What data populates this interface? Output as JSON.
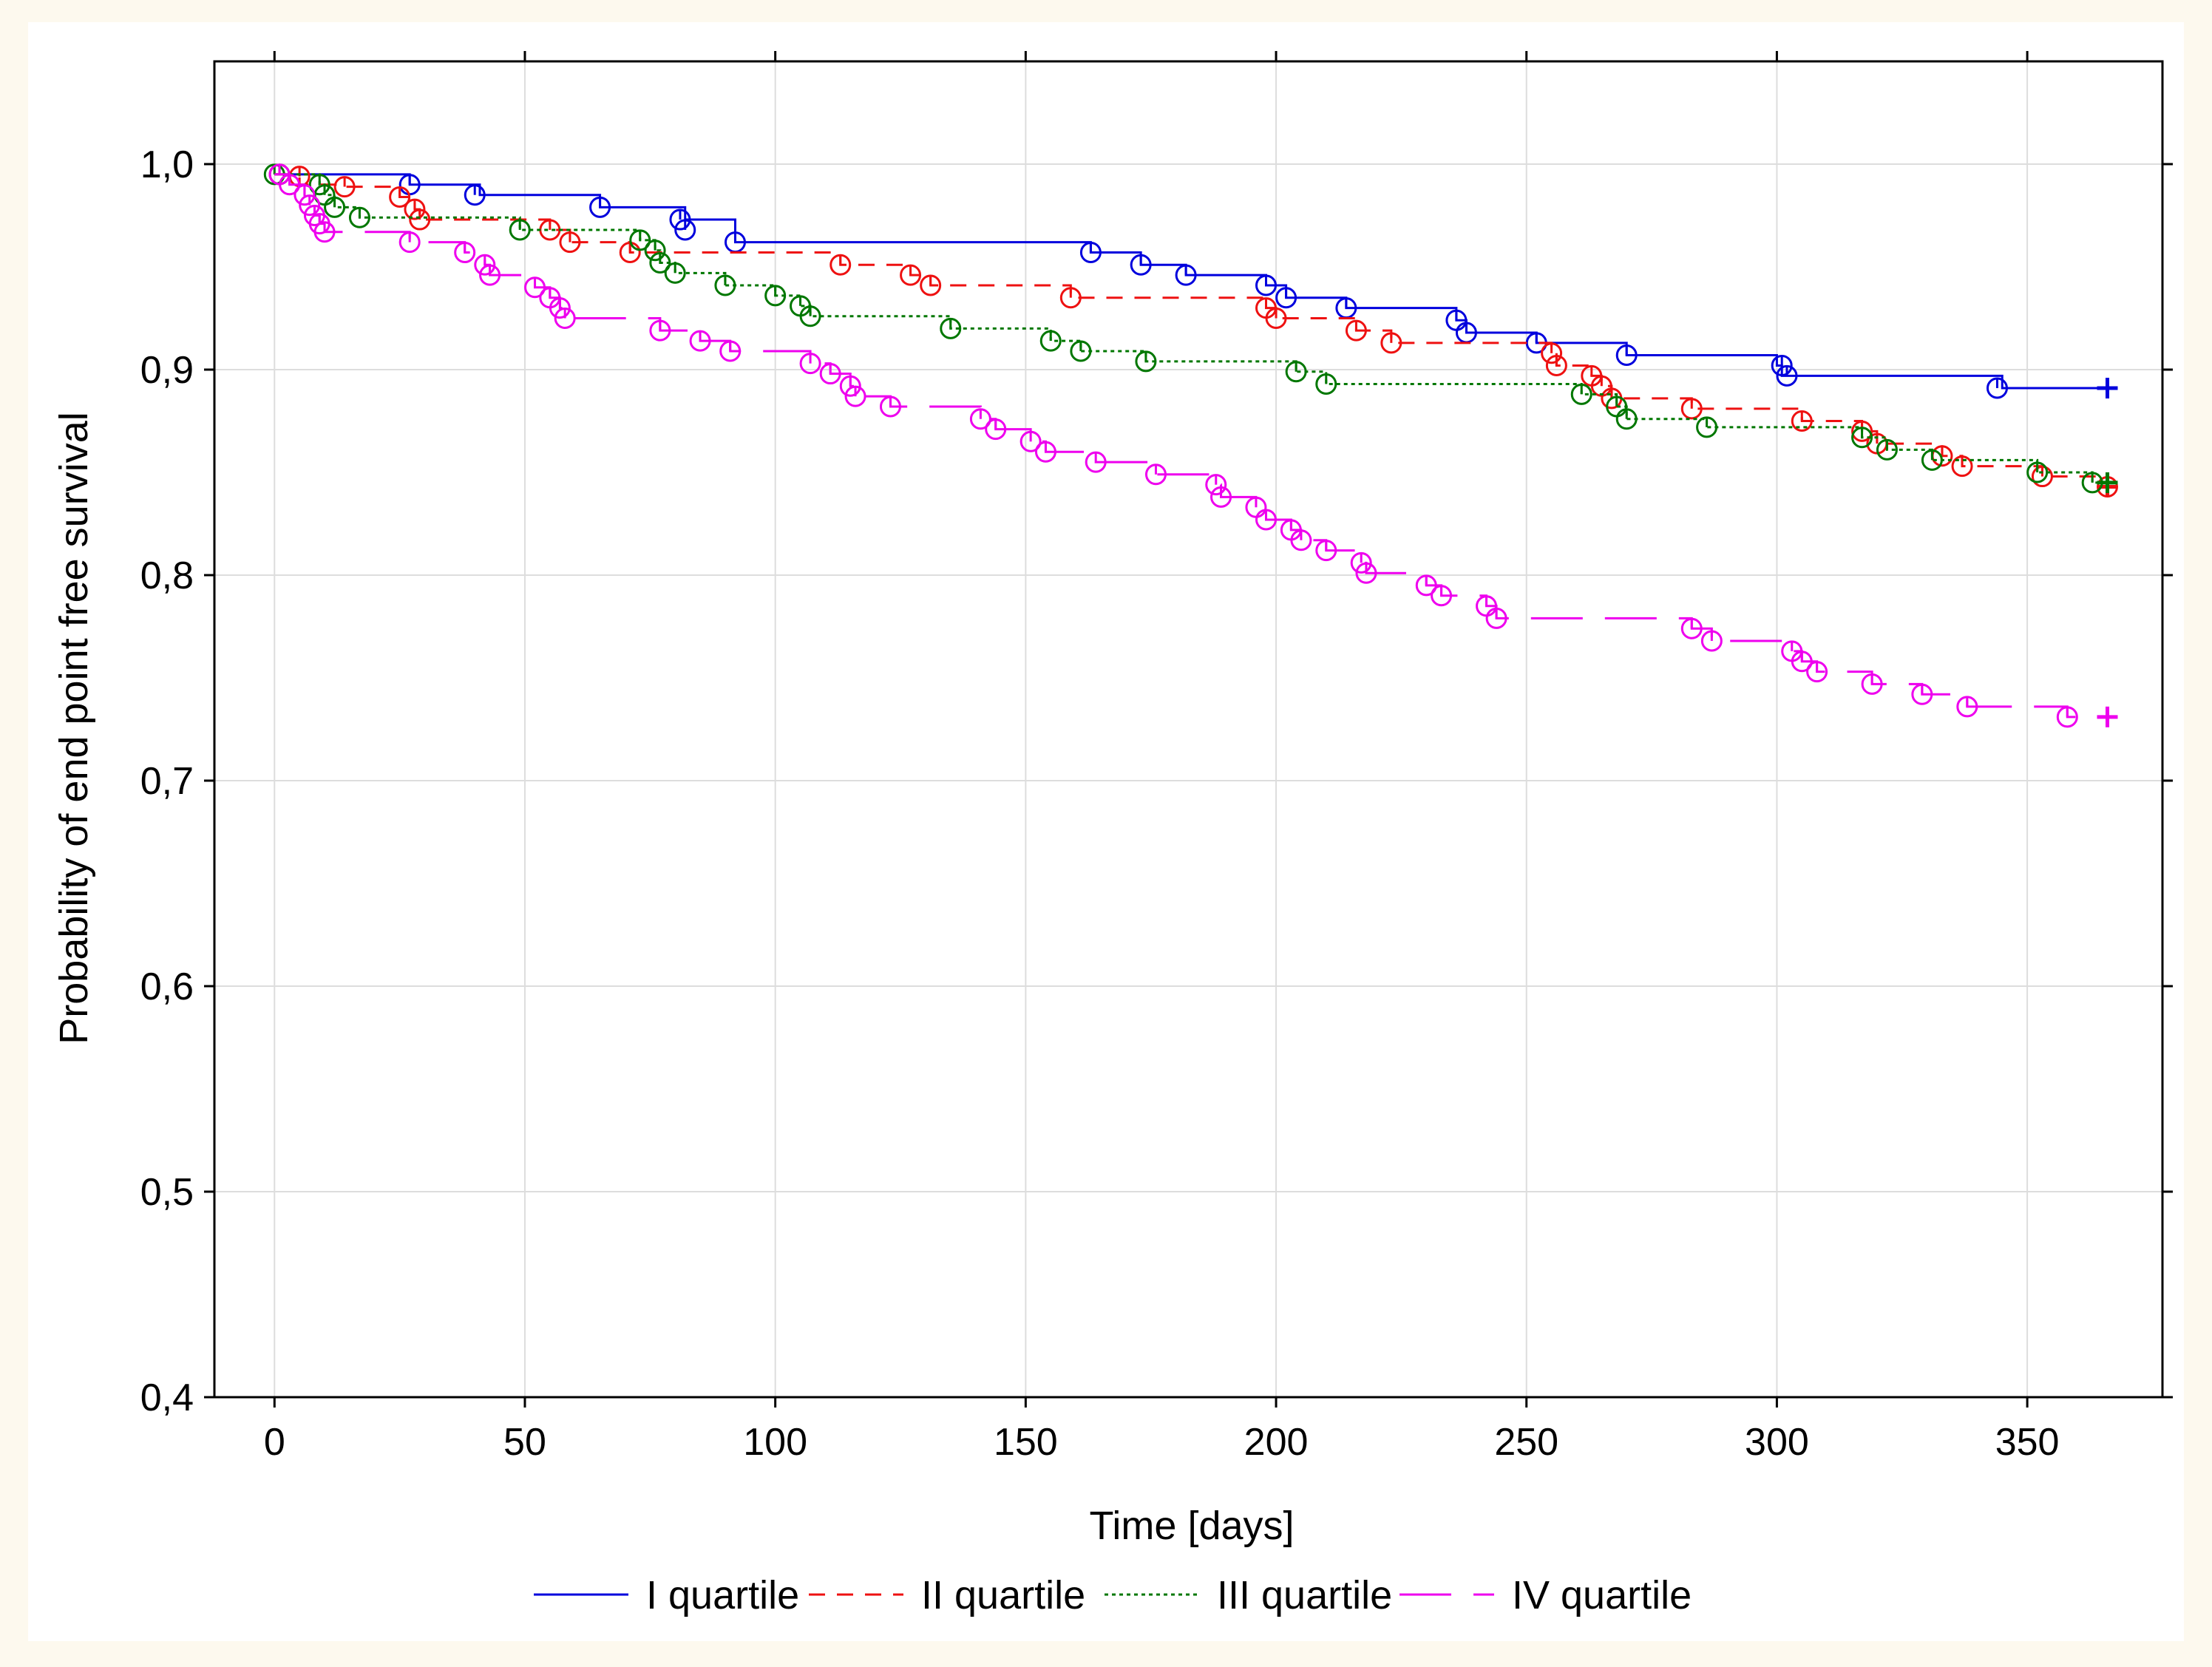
{
  "colors": {
    "background": "#fdf9ee",
    "plot_background": "#ffffff",
    "grid": "#dddddd",
    "I quartile": "#0000dd",
    "II quartile": "#ee1111",
    "III quartile": "#007700",
    "IV quartile": "#ee00ee"
  },
  "chart_data": {
    "type": "line",
    "subtype": "kaplan-meier step curves with censoring marks",
    "title": "",
    "xlabel": "Time [days]",
    "ylabel": "Probability of end point free survival",
    "xlim": [
      -12,
      377
    ],
    "ylim": [
      0.4,
      1.05
    ],
    "x_ticks": [
      0,
      50,
      100,
      150,
      200,
      250,
      300,
      350
    ],
    "x_tick_labels": [
      "0",
      "50",
      "100",
      "150",
      "200",
      "250",
      "300",
      "350"
    ],
    "y_ticks": [
      0.4,
      0.5,
      0.6,
      0.7,
      0.8,
      0.9,
      1.0
    ],
    "y_tick_labels": [
      "0,4",
      "0,5",
      "0,6",
      "0,7",
      "0,8",
      "0,9",
      "1,0"
    ],
    "grid": true,
    "legend_position": "bottom-center",
    "series": [
      {
        "name": "I quartile",
        "style": "solid",
        "steps": [
          [
            0,
            0.995
          ],
          [
            27,
            0.99
          ],
          [
            41,
            0.985
          ],
          [
            65,
            0.979
          ],
          [
            82,
            0.973
          ],
          [
            92,
            0.962
          ],
          [
            163,
            0.957
          ],
          [
            173,
            0.951
          ],
          [
            182,
            0.946
          ],
          [
            198,
            0.941
          ],
          [
            202,
            0.935
          ],
          [
            214,
            0.93
          ],
          [
            236,
            0.924
          ],
          [
            238,
            0.918
          ],
          [
            252,
            0.913
          ],
          [
            270,
            0.907
          ],
          [
            300,
            0.902
          ],
          [
            301,
            0.897
          ],
          [
            345,
            0.891
          ]
        ],
        "end": 366,
        "final": 0.891,
        "censored": [
          [
            1,
            0.995
          ],
          [
            27,
            0.99
          ],
          [
            40,
            0.985
          ],
          [
            65,
            0.979
          ],
          [
            81,
            0.973
          ],
          [
            82,
            0.968
          ],
          [
            92,
            0.962
          ],
          [
            163,
            0.957
          ],
          [
            173,
            0.951
          ],
          [
            182,
            0.946
          ],
          [
            198,
            0.941
          ],
          [
            202,
            0.935
          ],
          [
            214,
            0.93
          ],
          [
            236,
            0.924
          ],
          [
            238,
            0.918
          ],
          [
            252,
            0.913
          ],
          [
            270,
            0.907
          ],
          [
            301,
            0.902
          ],
          [
            302,
            0.897
          ],
          [
            344,
            0.891
          ]
        ]
      },
      {
        "name": "II quartile",
        "style": "dashed",
        "steps": [
          [
            0,
            0.995
          ],
          [
            5,
            0.99
          ],
          [
            14,
            0.989
          ],
          [
            25,
            0.984
          ],
          [
            28,
            0.978
          ],
          [
            29,
            0.973
          ],
          [
            55,
            0.968
          ],
          [
            59,
            0.962
          ],
          [
            71,
            0.957
          ],
          [
            113,
            0.951
          ],
          [
            127,
            0.946
          ],
          [
            131,
            0.941
          ],
          [
            159,
            0.935
          ],
          [
            198,
            0.93
          ],
          [
            200,
            0.925
          ],
          [
            216,
            0.919
          ],
          [
            223,
            0.913
          ],
          [
            255,
            0.908
          ],
          [
            256,
            0.902
          ],
          [
            263,
            0.897
          ],
          [
            265,
            0.892
          ],
          [
            267,
            0.886
          ],
          [
            283,
            0.881
          ],
          [
            305,
            0.875
          ],
          [
            317,
            0.87
          ],
          [
            320,
            0.864
          ],
          [
            333,
            0.858
          ],
          [
            337,
            0.853
          ],
          [
            353,
            0.848
          ]
        ],
        "end": 366,
        "final": 0.843,
        "censored": [
          [
            1,
            0.995
          ],
          [
            5,
            0.994
          ],
          [
            14,
            0.989
          ],
          [
            25,
            0.984
          ],
          [
            28,
            0.978
          ],
          [
            29,
            0.973
          ],
          [
            55,
            0.968
          ],
          [
            59,
            0.962
          ],
          [
            71,
            0.957
          ],
          [
            113,
            0.951
          ],
          [
            127,
            0.946
          ],
          [
            131,
            0.941
          ],
          [
            159,
            0.935
          ],
          [
            198,
            0.93
          ],
          [
            200,
            0.925
          ],
          [
            216,
            0.919
          ],
          [
            223,
            0.913
          ],
          [
            255,
            0.908
          ],
          [
            256,
            0.902
          ],
          [
            263,
            0.897
          ],
          [
            265,
            0.892
          ],
          [
            267,
            0.886
          ],
          [
            283,
            0.881
          ],
          [
            305,
            0.875
          ],
          [
            317,
            0.87
          ],
          [
            320,
            0.864
          ],
          [
            333,
            0.858
          ],
          [
            337,
            0.853
          ],
          [
            353,
            0.848
          ],
          [
            366,
            0.843
          ]
        ]
      },
      {
        "name": "III quartile",
        "style": "dotted",
        "steps": [
          [
            0,
            0.995
          ],
          [
            9,
            0.99
          ],
          [
            10,
            0.985
          ],
          [
            12,
            0.979
          ],
          [
            17,
            0.974
          ],
          [
            49,
            0.968
          ],
          [
            73,
            0.963
          ],
          [
            76,
            0.958
          ],
          [
            77,
            0.952
          ],
          [
            80,
            0.947
          ],
          [
            90,
            0.941
          ],
          [
            100,
            0.936
          ],
          [
            105,
            0.931
          ],
          [
            107,
            0.926
          ],
          [
            135,
            0.92
          ],
          [
            155,
            0.914
          ],
          [
            161,
            0.909
          ],
          [
            174,
            0.904
          ],
          [
            204,
            0.899
          ],
          [
            210,
            0.893
          ],
          [
            261,
            0.888
          ],
          [
            268,
            0.882
          ],
          [
            270,
            0.876
          ],
          [
            286,
            0.872
          ],
          [
            317,
            0.867
          ],
          [
            322,
            0.861
          ],
          [
            331,
            0.856
          ],
          [
            352,
            0.85
          ],
          [
            363,
            0.845
          ]
        ],
        "end": 366,
        "final": 0.845,
        "censored": [
          [
            0,
            0.995
          ],
          [
            9,
            0.99
          ],
          [
            10,
            0.985
          ],
          [
            12,
            0.979
          ],
          [
            17,
            0.974
          ],
          [
            49,
            0.968
          ],
          [
            73,
            0.963
          ],
          [
            76,
            0.958
          ],
          [
            77,
            0.952
          ],
          [
            80,
            0.947
          ],
          [
            90,
            0.941
          ],
          [
            100,
            0.936
          ],
          [
            105,
            0.931
          ],
          [
            107,
            0.926
          ],
          [
            135,
            0.92
          ],
          [
            155,
            0.914
          ],
          [
            161,
            0.909
          ],
          [
            174,
            0.904
          ],
          [
            204,
            0.899
          ],
          [
            210,
            0.893
          ],
          [
            261,
            0.888
          ],
          [
            268,
            0.882
          ],
          [
            270,
            0.876
          ],
          [
            286,
            0.872
          ],
          [
            317,
            0.867
          ],
          [
            322,
            0.861
          ],
          [
            331,
            0.856
          ],
          [
            352,
            0.85
          ],
          [
            363,
            0.845
          ]
        ]
      },
      {
        "name": "IV quartile",
        "style": "longdash",
        "steps": [
          [
            0,
            0.995
          ],
          [
            3,
            0.99
          ],
          [
            6,
            0.985
          ],
          [
            7,
            0.98
          ],
          [
            8,
            0.975
          ],
          [
            9,
            0.971
          ],
          [
            10,
            0.967
          ],
          [
            27,
            0.962
          ],
          [
            38,
            0.957
          ],
          [
            42,
            0.951
          ],
          [
            43,
            0.946
          ],
          [
            52,
            0.94
          ],
          [
            55,
            0.935
          ],
          [
            57,
            0.93
          ],
          [
            58,
            0.925
          ],
          [
            77,
            0.919
          ],
          [
            85,
            0.914
          ],
          [
            91,
            0.909
          ],
          [
            107,
            0.903
          ],
          [
            111,
            0.898
          ],
          [
            115,
            0.892
          ],
          [
            116,
            0.887
          ],
          [
            123,
            0.882
          ],
          [
            141,
            0.876
          ],
          [
            144,
            0.871
          ],
          [
            151,
            0.865
          ],
          [
            154,
            0.86
          ],
          [
            164,
            0.855
          ],
          [
            176,
            0.849
          ],
          [
            188,
            0.844
          ],
          [
            189,
            0.838
          ],
          [
            196,
            0.833
          ],
          [
            198,
            0.827
          ],
          [
            203,
            0.822
          ],
          [
            205,
            0.817
          ],
          [
            210,
            0.812
          ],
          [
            217,
            0.806
          ],
          [
            218,
            0.801
          ],
          [
            230,
            0.795
          ],
          [
            233,
            0.79
          ],
          [
            242,
            0.785
          ],
          [
            244,
            0.779
          ],
          [
            283,
            0.774
          ],
          [
            287,
            0.768
          ],
          [
            303,
            0.763
          ],
          [
            305,
            0.758
          ],
          [
            308,
            0.753
          ],
          [
            319,
            0.747
          ],
          [
            329,
            0.742
          ],
          [
            338,
            0.736
          ],
          [
            358,
            0.731
          ]
        ],
        "end": 366,
        "final": 0.731,
        "censored": [
          [
            1,
            0.995
          ],
          [
            3,
            0.99
          ],
          [
            6,
            0.985
          ],
          [
            7,
            0.98
          ],
          [
            8,
            0.975
          ],
          [
            9,
            0.971
          ],
          [
            10,
            0.967
          ],
          [
            27,
            0.962
          ],
          [
            38,
            0.957
          ],
          [
            42,
            0.951
          ],
          [
            43,
            0.946
          ],
          [
            52,
            0.94
          ],
          [
            55,
            0.935
          ],
          [
            57,
            0.93
          ],
          [
            58,
            0.925
          ],
          [
            77,
            0.919
          ],
          [
            85,
            0.914
          ],
          [
            91,
            0.909
          ],
          [
            107,
            0.903
          ],
          [
            111,
            0.898
          ],
          [
            115,
            0.892
          ],
          [
            116,
            0.887
          ],
          [
            123,
            0.882
          ],
          [
            141,
            0.876
          ],
          [
            144,
            0.871
          ],
          [
            151,
            0.865
          ],
          [
            154,
            0.86
          ],
          [
            164,
            0.855
          ],
          [
            176,
            0.849
          ],
          [
            188,
            0.844
          ],
          [
            189,
            0.838
          ],
          [
            196,
            0.833
          ],
          [
            198,
            0.827
          ],
          [
            203,
            0.822
          ],
          [
            205,
            0.817
          ],
          [
            210,
            0.812
          ],
          [
            217,
            0.806
          ],
          [
            218,
            0.801
          ],
          [
            230,
            0.795
          ],
          [
            233,
            0.79
          ],
          [
            242,
            0.785
          ],
          [
            244,
            0.779
          ],
          [
            283,
            0.774
          ],
          [
            287,
            0.768
          ],
          [
            303,
            0.763
          ],
          [
            305,
            0.758
          ],
          [
            308,
            0.753
          ],
          [
            319,
            0.747
          ],
          [
            329,
            0.742
          ],
          [
            338,
            0.736
          ],
          [
            358,
            0.731
          ]
        ]
      }
    ]
  }
}
